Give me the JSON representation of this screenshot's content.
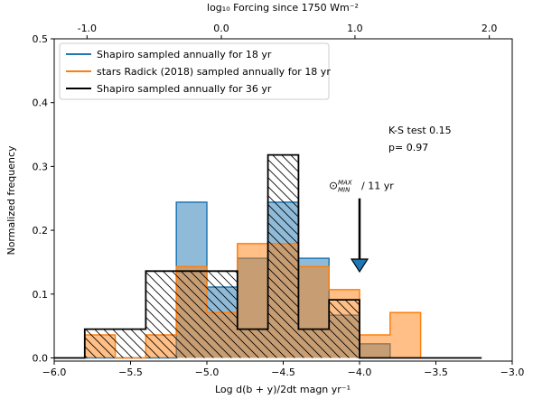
{
  "chart_data": {
    "type": "histogram",
    "xlabel": "Log d(b + y)/2dt magn yr⁻¹",
    "ylabel": "Normalized frequency",
    "top_xlabel": "log₁₀ Forcing since 1750 Wm⁻²",
    "xlim": [
      -6.0,
      -3.0
    ],
    "ylim": [
      -0.005,
      0.5
    ],
    "xticks": [
      -6.0,
      -5.5,
      -5.0,
      -4.5,
      -4.0,
      -3.5,
      -3.0
    ],
    "xtick_labels": [
      "−6.0",
      "−5.5",
      "−5.0",
      "−4.5",
      "−4.0",
      "−3.5",
      "−3.0"
    ],
    "yticks": [
      0.0,
      0.1,
      0.2,
      0.3,
      0.4,
      0.5
    ],
    "ytick_labels": [
      "0.0",
      "0.1",
      "0.2",
      "0.3",
      "0.4",
      "0.5"
    ],
    "top_xtick_values": [
      -5.785,
      -4.905,
      -4.03,
      -3.15
    ],
    "top_xtick_labels": [
      "-1.0",
      "0.0",
      "1.0",
      "2.0"
    ],
    "legend_position": "top-left",
    "grid": false,
    "series": [
      {
        "name": "Shapiro sampled annually for 18 yr",
        "color": "#1f77b4",
        "style": "filled",
        "edges": [
          -5.8,
          -5.6,
          -5.4,
          -5.2,
          -5.0,
          -4.8,
          -4.6,
          -4.4,
          -4.2,
          -4.0,
          -3.8
        ],
        "values": [
          0.0,
          0.0,
          0.0,
          0.244,
          0.111,
          0.156,
          0.244,
          0.156,
          0.067,
          0.022
        ]
      },
      {
        "name": "stars Radick (2018) sampled annually for 18 yr",
        "color": "#ff7f0e",
        "style": "filled",
        "edges": [
          -5.8,
          -5.6,
          -5.4,
          -5.2,
          -5.0,
          -4.8,
          -4.6,
          -4.4,
          -4.2,
          -4.0,
          -3.8,
          -3.6
        ],
        "values": [
          0.036,
          0.0,
          0.036,
          0.143,
          0.071,
          0.179,
          0.179,
          0.143,
          0.107,
          0.036,
          0.071
        ]
      },
      {
        "name": "Shapiro sampled annually for 36 yr",
        "color": "#000000",
        "style": "hatched",
        "edges": [
          -6.0,
          -5.8,
          -5.4,
          -5.2,
          -4.8,
          -4.6,
          -4.4,
          -4.2,
          -4.0,
          -3.2
        ],
        "values": [
          0.0,
          0.045,
          0.136,
          0.136,
          0.045,
          0.318,
          0.045,
          0.091,
          0.0
        ]
      }
    ],
    "annotations": {
      "ks_test": "K-S test 0.15",
      "p_value": "p= 0.97",
      "arrow_label": "/ 11 yr",
      "arrow_symbol": "⊙",
      "arrow_sup": "MAX",
      "arrow_sub": "MIN",
      "arrow_x": -4.0,
      "arrow_y_top": 0.25,
      "arrow_y_bottom": 0.135
    }
  }
}
